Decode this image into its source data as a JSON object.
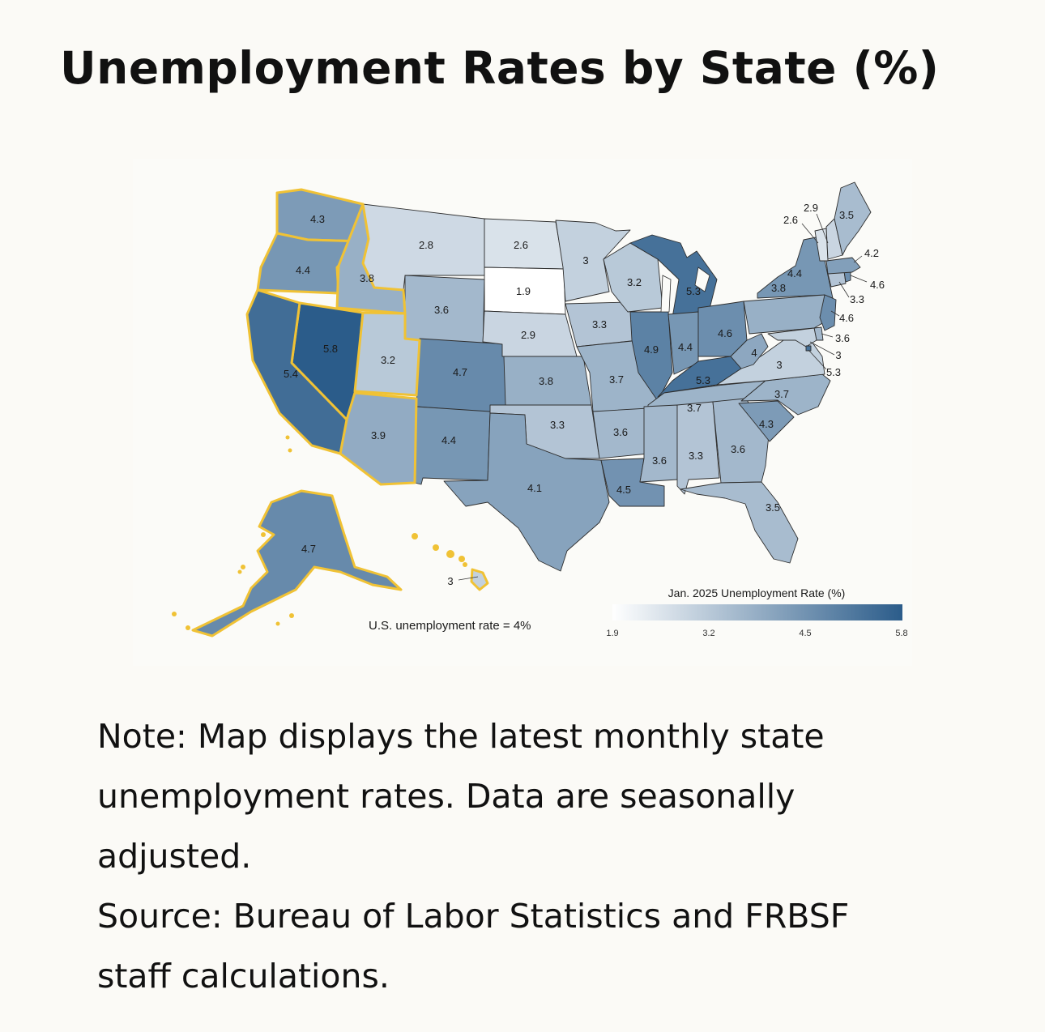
{
  "title": "Unemployment Rates by State (%)",
  "legend": {
    "title": "Jan. 2025 Unemployment Rate (%)",
    "ticks": [
      "1.9",
      "3.2",
      "4.5",
      "5.8"
    ],
    "min": 1.9,
    "max": 5.8,
    "color_low": "#ffffff",
    "color_high": "#2b5c8a"
  },
  "us_note": "U.S. unemployment rate = 4%",
  "highlight_color": "#f0c235",
  "states": [
    {
      "id": "WA",
      "value": 4.3,
      "label": "4.3",
      "highlight": true
    },
    {
      "id": "OR",
      "value": 4.4,
      "label": "4.4",
      "highlight": true
    },
    {
      "id": "CA",
      "value": 5.4,
      "label": "5.4",
      "highlight": true
    },
    {
      "id": "ID",
      "value": 3.8,
      "label": "3.8",
      "highlight": true
    },
    {
      "id": "NV",
      "value": 5.8,
      "label": "5.8",
      "highlight": true
    },
    {
      "id": "UT",
      "value": 3.2,
      "label": "3.2",
      "highlight": true
    },
    {
      "id": "AZ",
      "value": 3.9,
      "label": "3.9",
      "highlight": true
    },
    {
      "id": "AK",
      "value": 4.7,
      "label": "4.7",
      "highlight": true
    },
    {
      "id": "HI",
      "value": 3.0,
      "label": "3",
      "highlight": true
    },
    {
      "id": "MT",
      "value": 2.8,
      "label": "2.8",
      "highlight": false
    },
    {
      "id": "WY",
      "value": 3.6,
      "label": "3.6",
      "highlight": false
    },
    {
      "id": "CO",
      "value": 4.7,
      "label": "4.7",
      "highlight": false
    },
    {
      "id": "NM",
      "value": 4.4,
      "label": "4.4",
      "highlight": false
    },
    {
      "id": "ND",
      "value": 2.6,
      "label": "2.6",
      "highlight": false
    },
    {
      "id": "SD",
      "value": 1.9,
      "label": "1.9",
      "highlight": false
    },
    {
      "id": "NE",
      "value": 2.9,
      "label": "2.9",
      "highlight": false
    },
    {
      "id": "KS",
      "value": 3.8,
      "label": "3.8",
      "highlight": false
    },
    {
      "id": "OK",
      "value": 3.3,
      "label": "3.3",
      "highlight": false
    },
    {
      "id": "TX",
      "value": 4.1,
      "label": "4.1",
      "highlight": false
    },
    {
      "id": "MN",
      "value": 3.0,
      "label": "3",
      "highlight": false
    },
    {
      "id": "IA",
      "value": 3.3,
      "label": "3.3",
      "highlight": false
    },
    {
      "id": "MO",
      "value": 3.7,
      "label": "3.7",
      "highlight": false
    },
    {
      "id": "AR",
      "value": 3.6,
      "label": "3.6",
      "highlight": false
    },
    {
      "id": "LA",
      "value": 4.5,
      "label": "4.5",
      "highlight": false
    },
    {
      "id": "WI",
      "value": 3.2,
      "label": "3.2",
      "highlight": false
    },
    {
      "id": "IL",
      "value": 4.9,
      "label": "4.9",
      "highlight": false
    },
    {
      "id": "MI",
      "value": 5.3,
      "label": "5.3",
      "highlight": false
    },
    {
      "id": "IN",
      "value": 4.4,
      "label": "4.4",
      "highlight": false
    },
    {
      "id": "OH",
      "value": 4.6,
      "label": "4.6",
      "highlight": false
    },
    {
      "id": "KY",
      "value": 5.3,
      "label": "5.3",
      "highlight": false
    },
    {
      "id": "TN",
      "value": 3.7,
      "label": "3.7",
      "highlight": false
    },
    {
      "id": "MS",
      "value": 3.6,
      "label": "3.6",
      "highlight": false
    },
    {
      "id": "AL",
      "value": 3.3,
      "label": "3.3",
      "highlight": false
    },
    {
      "id": "GA",
      "value": 3.6,
      "label": "3.6",
      "highlight": false
    },
    {
      "id": "FL",
      "value": 3.5,
      "label": "3.5",
      "highlight": false
    },
    {
      "id": "SC",
      "value": 4.3,
      "label": "4.3",
      "highlight": false
    },
    {
      "id": "NC",
      "value": 3.7,
      "label": "3.7",
      "highlight": false
    },
    {
      "id": "VA",
      "value": 3.0,
      "label": "3",
      "highlight": false
    },
    {
      "id": "WV",
      "value": 4.0,
      "label": "4",
      "highlight": false
    },
    {
      "id": "PA",
      "value": 3.8,
      "label": "3.8",
      "highlight": false
    },
    {
      "id": "NY",
      "value": 4.4,
      "label": "4.4",
      "highlight": false
    },
    {
      "id": "NJ",
      "value": 4.6,
      "label": "4.6",
      "highlight": false
    },
    {
      "id": "DE",
      "value": 3.6,
      "label": "3.6",
      "highlight": false
    },
    {
      "id": "MD",
      "value": 3.0,
      "label": "3",
      "highlight": false
    },
    {
      "id": "DC",
      "value": 5.3,
      "label": "5.3",
      "highlight": false
    },
    {
      "id": "CT",
      "value": 3.3,
      "label": "3.3",
      "highlight": false
    },
    {
      "id": "RI",
      "value": 4.6,
      "label": "4.6",
      "highlight": false
    },
    {
      "id": "MA",
      "value": 4.2,
      "label": "4.2",
      "highlight": false
    },
    {
      "id": "VT",
      "value": 2.6,
      "label": "2.6",
      "highlight": false
    },
    {
      "id": "NH",
      "value": 2.9,
      "label": "2.9",
      "highlight": false
    },
    {
      "id": "ME",
      "value": 3.5,
      "label": "3.5",
      "highlight": false
    }
  ],
  "note_lines": [
    "Note: Map displays the latest monthly state",
    "unemployment rates. Data are seasonally",
    "adjusted.",
    "Source: Bureau of Labor Statistics and FRBSF",
    "staff calculations."
  ]
}
